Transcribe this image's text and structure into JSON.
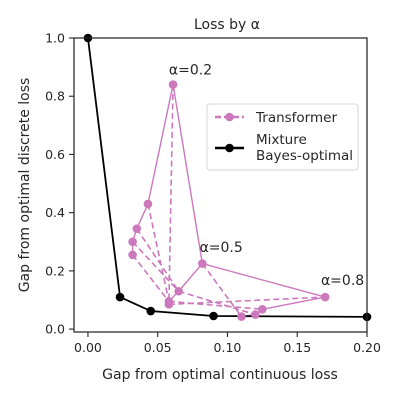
{
  "chart_data": {
    "type": "line",
    "title": "Loss by α",
    "xlabel": "Gap from optimal continuous loss",
    "ylabel": "Gap from optimal discrete loss",
    "xlim": [
      -0.01,
      0.2
    ],
    "ylim": [
      -0.01,
      1.0
    ],
    "x_ticks": [
      "0.00",
      "0.05",
      "0.10",
      "0.15",
      "0.20"
    ],
    "x_tick_values": [
      0.0,
      0.05,
      0.1,
      0.15,
      0.2
    ],
    "y_ticks": [
      "0.0",
      "0.2",
      "0.4",
      "0.6",
      "0.8",
      "1.0"
    ],
    "y_tick_values": [
      0.0,
      0.2,
      0.4,
      0.6,
      0.8,
      1.0
    ],
    "grid": false,
    "legend_position": "center-right",
    "series": [
      {
        "name": "Transformer",
        "color": "#cc78bc",
        "style": "marker",
        "points": [
          [
            0.061,
            0.84
          ],
          [
            0.043,
            0.43
          ],
          [
            0.035,
            0.345
          ],
          [
            0.032,
            0.3
          ],
          [
            0.032,
            0.255
          ],
          [
            0.082,
            0.225
          ],
          [
            0.065,
            0.13
          ],
          [
            0.058,
            0.095
          ],
          [
            0.058,
            0.085
          ],
          [
            0.17,
            0.11
          ],
          [
            0.125,
            0.068
          ],
          [
            0.12,
            0.05
          ],
          [
            0.11,
            0.043
          ]
        ]
      },
      {
        "name": "Mixture\nBayes-optimal",
        "color": "#000000",
        "style": "solid",
        "points": [
          [
            0.0,
            1.0
          ],
          [
            0.023,
            0.11
          ],
          [
            0.045,
            0.062
          ],
          [
            0.09,
            0.045
          ],
          [
            0.2,
            0.042
          ]
        ]
      }
    ],
    "transformer_edges_solid": [
      [
        0,
        1
      ],
      [
        1,
        2
      ],
      [
        2,
        3
      ],
      [
        3,
        4
      ],
      [
        0,
        5
      ],
      [
        5,
        6
      ],
      [
        6,
        7
      ],
      [
        7,
        8
      ],
      [
        5,
        9
      ],
      [
        9,
        10
      ],
      [
        10,
        11
      ],
      [
        11,
        12
      ]
    ],
    "transformer_edges_dashed": [
      [
        0,
        8
      ],
      [
        1,
        7
      ],
      [
        2,
        6
      ],
      [
        3,
        6
      ],
      [
        4,
        7
      ],
      [
        5,
        12
      ],
      [
        6,
        11
      ],
      [
        7,
        10
      ],
      [
        8,
        9
      ]
    ],
    "annotations": [
      {
        "text": "α=0.2",
        "x": 0.058,
        "y": 0.875
      },
      {
        "text": "α=0.5",
        "x": 0.08,
        "y": 0.265
      },
      {
        "text": "α=0.8",
        "x": 0.167,
        "y": 0.152
      }
    ]
  }
}
